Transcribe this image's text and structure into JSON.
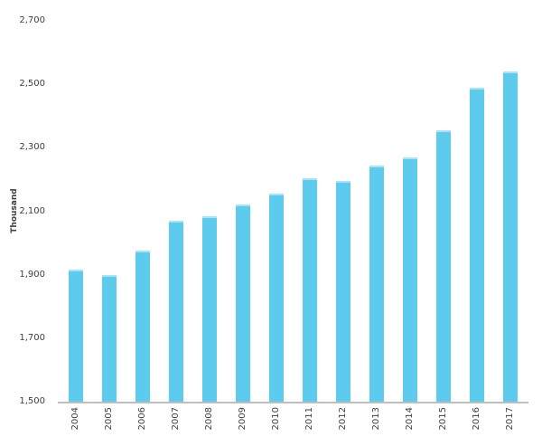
{
  "chart_data": {
    "type": "bar",
    "title": "",
    "ylabel": "Thousand",
    "xlabel": "",
    "categories": [
      "2004",
      "2005",
      "2006",
      "2007",
      "2008",
      "2009",
      "2010",
      "2011",
      "2012",
      "2013",
      "2014",
      "2015",
      "2016",
      "2017"
    ],
    "values": [
      1915,
      1900,
      1975,
      2070,
      2085,
      2120,
      2155,
      2205,
      2195,
      2245,
      2270,
      2355,
      2490,
      2540
    ],
    "ylim": [
      1500,
      2700
    ],
    "yticks": [
      1500,
      1700,
      1900,
      2100,
      2300,
      2500,
      2700
    ],
    "ytick_labels": [
      "1,500",
      "1,700",
      "1,900",
      "2,100",
      "2,300",
      "2,500",
      "2,700"
    ],
    "grid": false,
    "legend": "none",
    "colors": {
      "bar": "#5dcbee",
      "bar_top_cap": "#a9e3f6",
      "axis_line": "#bfbfbf",
      "text": "#404040",
      "background": "#ffffff"
    }
  }
}
